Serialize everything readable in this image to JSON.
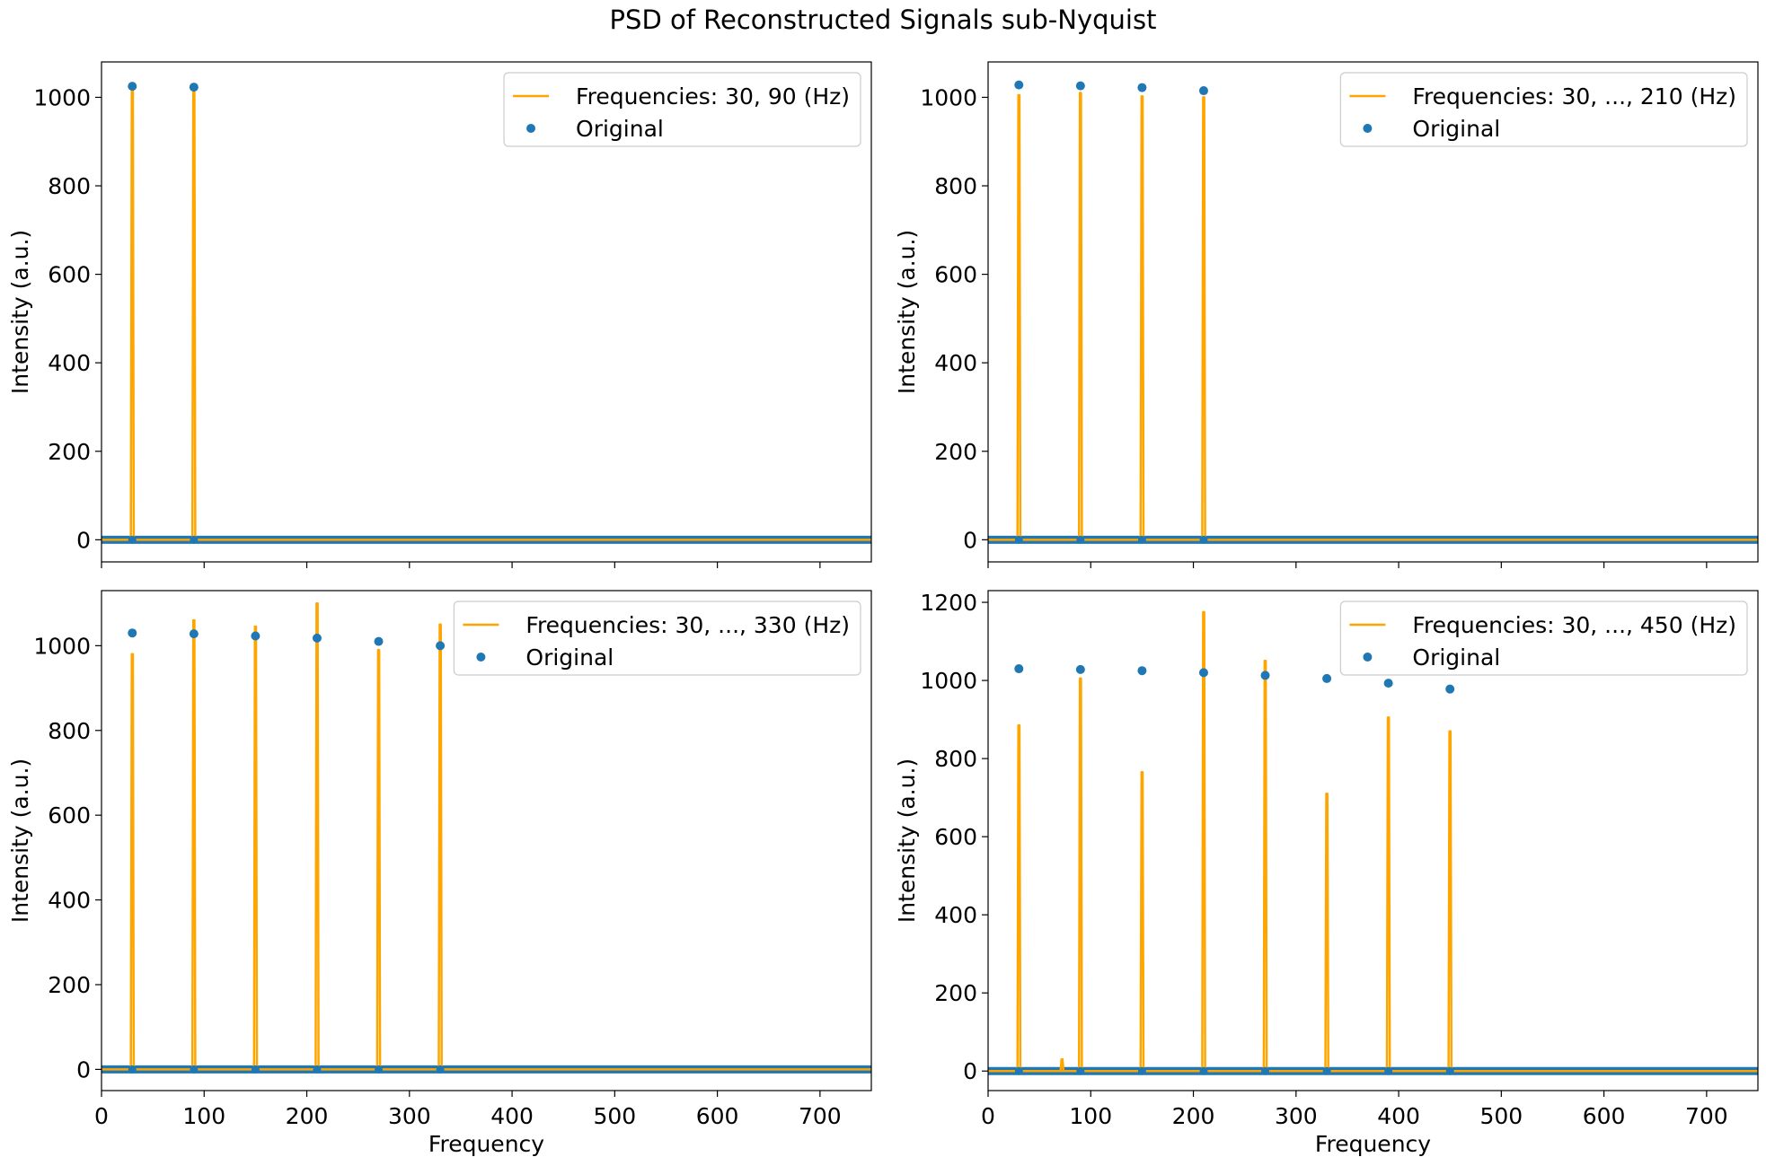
{
  "figure": {
    "title": "PSD of Reconstructed Signals sub-Nyquist",
    "colors": {
      "reconstructed": "#ffa500",
      "original": "#1f77b4",
      "axes": "#000000",
      "legend_border": "#cccccc"
    }
  },
  "chart_data": [
    {
      "type": "line",
      "panel": "top-left",
      "xlabel": "",
      "ylabel": "Intensity (a.u.)",
      "xlim": [
        0,
        750
      ],
      "ylim": [
        -50,
        1080
      ],
      "xticks": [
        0,
        100,
        200,
        300,
        400,
        500,
        600,
        700
      ],
      "xtick_labels_visible": false,
      "yticks": [
        0,
        200,
        400,
        600,
        800,
        1000
      ],
      "legend_position": "upper right",
      "series": [
        {
          "name": "Frequencies: 30, 90 (Hz)",
          "type": "line",
          "x": [
            30,
            90
          ],
          "y": [
            1020,
            1018
          ]
        },
        {
          "name": "Original",
          "type": "scatter",
          "x": [
            30,
            90
          ],
          "y": [
            1025,
            1023
          ]
        }
      ]
    },
    {
      "type": "line",
      "panel": "top-right",
      "xlabel": "",
      "ylabel": "Intensity (a.u.)",
      "xlim": [
        0,
        750
      ],
      "ylim": [
        -50,
        1080
      ],
      "xticks": [
        0,
        100,
        200,
        300,
        400,
        500,
        600,
        700
      ],
      "xtick_labels_visible": false,
      "yticks": [
        0,
        200,
        400,
        600,
        800,
        1000
      ],
      "legend_position": "upper right",
      "series": [
        {
          "name": "Frequencies: 30, ..., 210 (Hz)",
          "type": "line",
          "x": [
            30,
            90,
            150,
            210
          ],
          "y": [
            1005,
            1010,
            1002,
            1000
          ]
        },
        {
          "name": "Original",
          "type": "scatter",
          "x": [
            30,
            90,
            150,
            210
          ],
          "y": [
            1028,
            1026,
            1022,
            1015
          ]
        }
      ]
    },
    {
      "type": "line",
      "panel": "bottom-left",
      "xlabel": "Frequency",
      "ylabel": "Intensity (a.u.)",
      "xlim": [
        0,
        750
      ],
      "ylim": [
        -50,
        1130
      ],
      "xticks": [
        0,
        100,
        200,
        300,
        400,
        500,
        600,
        700
      ],
      "xtick_labels_visible": true,
      "yticks": [
        0,
        200,
        400,
        600,
        800,
        1000
      ],
      "legend_position": "upper right",
      "series": [
        {
          "name": "Frequencies: 30, ..., 330 (Hz)",
          "type": "line",
          "x": [
            30,
            90,
            150,
            210,
            270,
            330
          ],
          "y": [
            980,
            1060,
            1045,
            1100,
            990,
            1050
          ]
        },
        {
          "name": "Original",
          "type": "scatter",
          "x": [
            30,
            90,
            150,
            210,
            270,
            330
          ],
          "y": [
            1030,
            1028,
            1023,
            1018,
            1010,
            1000
          ]
        }
      ]
    },
    {
      "type": "line",
      "panel": "bottom-right",
      "xlabel": "Frequency",
      "ylabel": "Intensity (a.u.)",
      "xlim": [
        0,
        750
      ],
      "ylim": [
        -50,
        1230
      ],
      "xticks": [
        0,
        100,
        200,
        300,
        400,
        500,
        600,
        700
      ],
      "xtick_labels_visible": true,
      "yticks": [
        0,
        200,
        400,
        600,
        800,
        1000,
        1200
      ],
      "legend_position": "upper right",
      "series": [
        {
          "name": "Frequencies: 30, ..., 450 (Hz)",
          "type": "line",
          "x": [
            30,
            72,
            90,
            150,
            210,
            270,
            330,
            390,
            450
          ],
          "y": [
            885,
            30,
            1005,
            765,
            1175,
            1050,
            710,
            905,
            870
          ]
        },
        {
          "name": "Original",
          "type": "scatter",
          "x": [
            30,
            90,
            150,
            210,
            270,
            330,
            390,
            450
          ],
          "y": [
            1030,
            1028,
            1025,
            1020,
            1013,
            1005,
            993,
            978
          ]
        }
      ]
    }
  ]
}
